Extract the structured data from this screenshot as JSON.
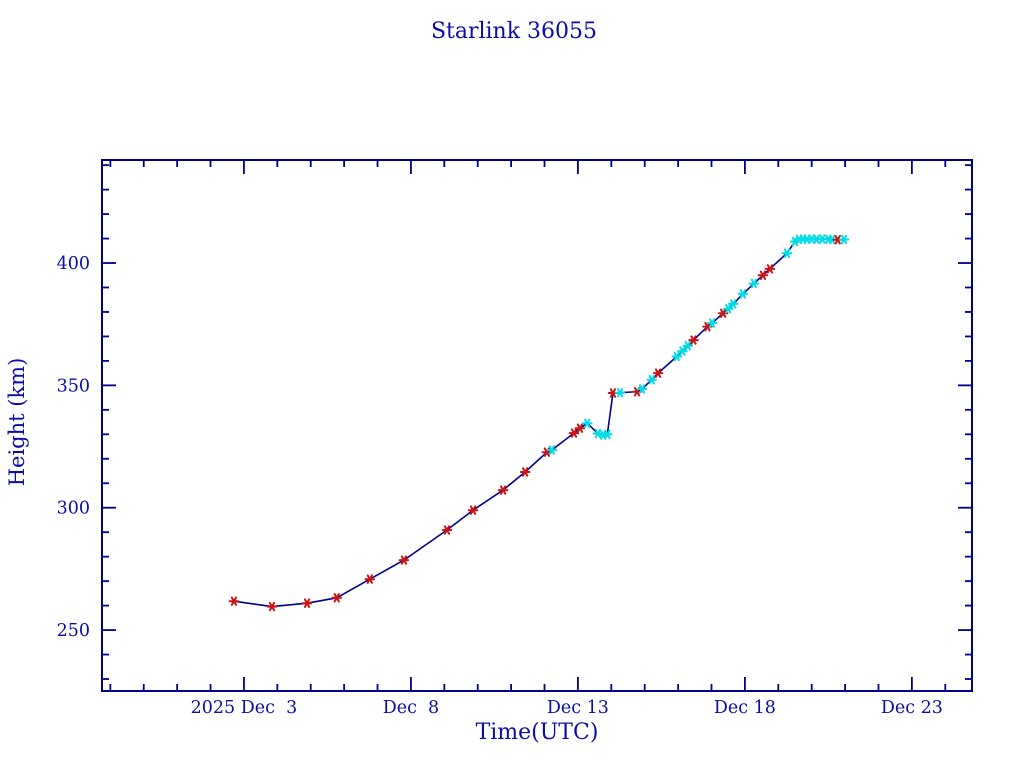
{
  "page": {
    "background": "#ffffff"
  },
  "colors": {
    "text_blue": "#0c0ca6",
    "axis_blue": "#00008b",
    "line_navy": "#00008b",
    "marker_red": "#cc1414",
    "marker_cyan": "#00dde6"
  },
  "chart_data": {
    "type": "line",
    "title": "Starlink 36055",
    "xlabel": "Time(UTC)",
    "ylabel": "Height (km)",
    "x_unit": "day of December 2025 (decimal UTC)",
    "y_unit": "km",
    "xlim": [
      -1.25,
      24.8
    ],
    "ylim": [
      225.1,
      442.1
    ],
    "grid": false,
    "legend_position": "none",
    "x_major_ticks": [
      {
        "value": 3,
        "label": "2025 Dec  3"
      },
      {
        "value": 8,
        "label": "Dec  8"
      },
      {
        "value": 13,
        "label": "Dec 13"
      },
      {
        "value": 18,
        "label": "Dec 18"
      },
      {
        "value": 23,
        "label": "Dec 23"
      }
    ],
    "x_minor_step": 1,
    "y_major_ticks": [
      {
        "value": 250,
        "label": "250"
      },
      {
        "value": 300,
        "label": "300"
      },
      {
        "value": 350,
        "label": "350"
      },
      {
        "value": 400,
        "label": "400"
      }
    ],
    "y_minor_step": 10,
    "line_color": "#00008b",
    "marker_style": "asterisk",
    "marker_colors": {
      "red": "#cc1414",
      "cyan": "#00dde6"
    },
    "note": "single height-vs-time track; navy line connects all points in time order; each point drawn as a red or cyan asterisk",
    "points": [
      [
        2.7,
        261.8,
        "red"
      ],
      [
        3.84,
        259.6,
        "red"
      ],
      [
        4.89,
        261.0,
        "red"
      ],
      [
        5.78,
        263.2,
        "red"
      ],
      [
        6.77,
        270.8,
        "red"
      ],
      [
        7.79,
        278.6,
        "red"
      ],
      [
        9.08,
        290.9,
        "red"
      ],
      [
        9.86,
        299.0,
        "red"
      ],
      [
        10.76,
        307.2,
        "red"
      ],
      [
        11.42,
        314.6,
        "red"
      ],
      [
        12.07,
        322.7,
        "red"
      ],
      [
        12.22,
        323.6,
        "cyan"
      ],
      [
        12.88,
        330.5,
        "red"
      ],
      [
        13.06,
        332.5,
        "red"
      ],
      [
        13.28,
        334.5,
        "cyan"
      ],
      [
        13.6,
        330.3,
        "cyan"
      ],
      [
        13.76,
        329.7,
        "cyan"
      ],
      [
        13.88,
        330.0,
        "cyan"
      ],
      [
        14.05,
        346.9,
        "red"
      ],
      [
        14.26,
        347.0,
        "cyan"
      ],
      [
        14.77,
        347.4,
        "red"
      ],
      [
        14.92,
        348.5,
        "cyan"
      ],
      [
        15.21,
        352.3,
        "cyan"
      ],
      [
        15.4,
        355.0,
        "red"
      ],
      [
        15.96,
        361.8,
        "cyan"
      ],
      [
        16.13,
        364.0,
        "cyan"
      ],
      [
        16.29,
        366.2,
        "cyan"
      ],
      [
        16.46,
        368.5,
        "red"
      ],
      [
        16.88,
        374.0,
        "red"
      ],
      [
        17.02,
        375.5,
        "cyan"
      ],
      [
        17.35,
        379.5,
        "red"
      ],
      [
        17.5,
        381.3,
        "cyan"
      ],
      [
        17.65,
        383.3,
        "cyan"
      ],
      [
        17.94,
        387.4,
        "cyan"
      ],
      [
        18.27,
        391.6,
        "cyan"
      ],
      [
        18.54,
        395.0,
        "red"
      ],
      [
        18.75,
        397.6,
        "red"
      ],
      [
        19.26,
        404.0,
        "cyan"
      ],
      [
        19.5,
        408.8,
        "cyan"
      ],
      [
        19.62,
        409.7,
        "cyan"
      ],
      [
        19.74,
        409.8,
        "cyan"
      ],
      [
        19.86,
        409.7,
        "cyan"
      ],
      [
        20.0,
        409.8,
        "cyan"
      ],
      [
        20.15,
        409.7,
        "cyan"
      ],
      [
        20.32,
        409.8,
        "cyan"
      ],
      [
        20.5,
        409.7,
        "cyan"
      ],
      [
        20.62,
        409.6,
        "cyan"
      ],
      [
        20.78,
        409.5,
        "red"
      ],
      [
        20.97,
        409.6,
        "cyan"
      ]
    ]
  }
}
